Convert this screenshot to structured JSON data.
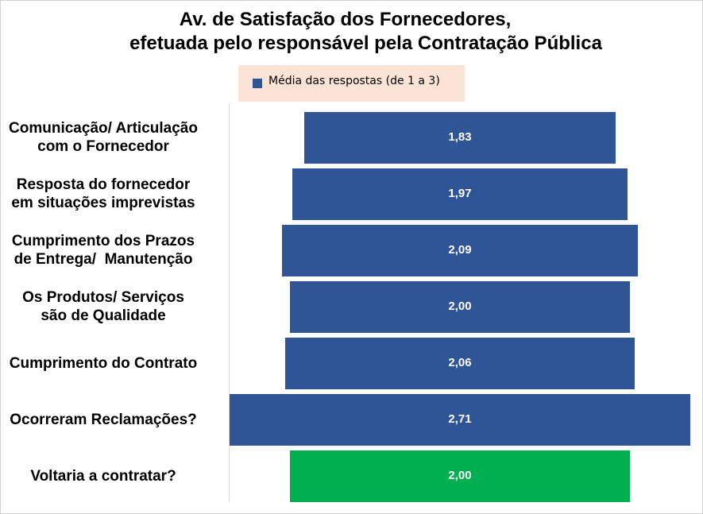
{
  "chart_data": {
    "type": "bar",
    "orientation": "horizontal",
    "title": "Av. de Satisfação dos Fornecedores,",
    "subtitle": "efetuada pelo responsável pela Contratação Pública",
    "legend": {
      "label": "Média das respostas (de 1 a 3)",
      "color": "#2f5597",
      "placement": "top"
    },
    "categories": [
      [
        "Comunicação/ Articulação",
        "com o Fornecedor"
      ],
      [
        "Resposta do fornecedor",
        "em situações imprevistas"
      ],
      [
        "Cumprimento dos Prazos",
        "de Entrega/  Manutenção"
      ],
      [
        "Os Produtos/ Serviços",
        "são de Qualidade"
      ],
      [
        "Cumprimento do Contrato"
      ],
      [
        "Ocorreram Reclamações?"
      ],
      [
        "Voltaria a contratar?"
      ]
    ],
    "values": [
      1.83,
      1.97,
      2.09,
      2.0,
      2.06,
      2.71,
      2.0
    ],
    "value_labels": [
      "1,83",
      "1,97",
      "2,09",
      "2,00",
      "2,06",
      "2,71",
      "2,00"
    ],
    "bar_colors": [
      "#2f5597",
      "#2f5597",
      "#2f5597",
      "#2f5597",
      "#2f5597",
      "#2f5597",
      "#00b050"
    ],
    "bars_centered": true,
    "grid": false
  }
}
